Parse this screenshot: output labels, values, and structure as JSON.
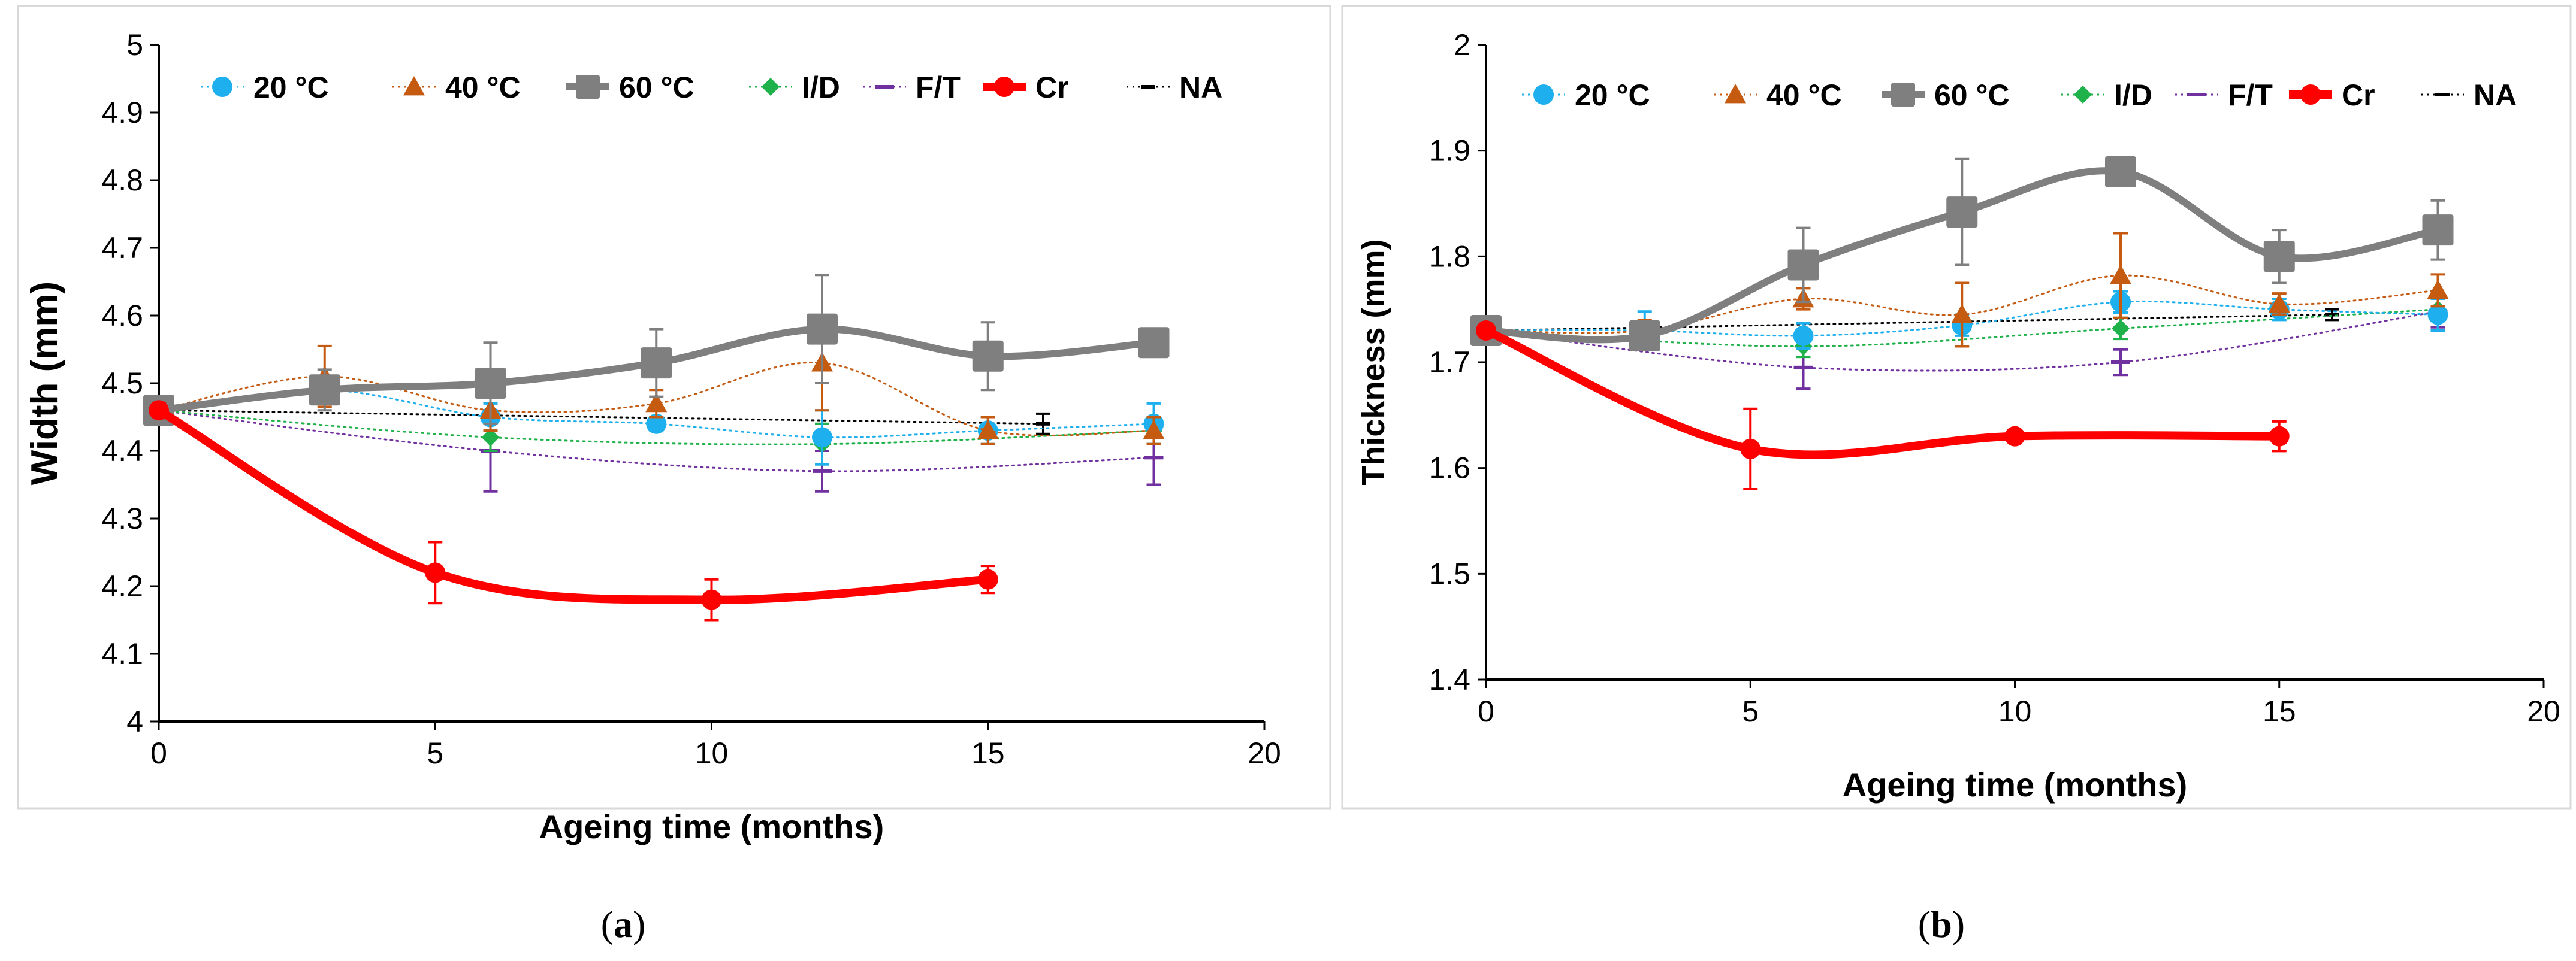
{
  "series_styles": [
    {
      "name": "20 °C",
      "color": "#1EB0EE",
      "marker": "circle",
      "line": "dotted",
      "width": 3,
      "msize": 17
    },
    {
      "name": "40 °C",
      "color": "#C55A11",
      "marker": "triangle",
      "line": "dotted",
      "width": 3,
      "msize": 18
    },
    {
      "name": "60 °C",
      "color": "#7F7F7F",
      "marker": "square",
      "line": "solid",
      "width": 12,
      "msize": 26
    },
    {
      "name": "I/D",
      "color": "#1FB24A",
      "marker": "diamond",
      "line": "dotted",
      "width": 3,
      "msize": 15
    },
    {
      "name": "F/T",
      "color": "#7030A0",
      "marker": "dash",
      "line": "dotted",
      "width": 3,
      "msize": 16
    },
    {
      "name": "Cr",
      "color": "#FF0000",
      "marker": "circle",
      "line": "solid",
      "width": 14,
      "msize": 17
    },
    {
      "name": "NA",
      "color": "#000000",
      "marker": "dash",
      "line": "dotted",
      "width": 3,
      "msize": 12
    }
  ],
  "chart_data": [
    {
      "type": "line",
      "panel_label": "a",
      "xlabel": "Ageing time (months)",
      "ylabel": "Width (mm)",
      "xlim": [
        0,
        20
      ],
      "ylim": [
        4,
        5
      ],
      "x_ticks": [
        "0",
        "5",
        "10",
        "15",
        "20"
      ],
      "y_ticks": [
        "4",
        "4.1",
        "4.2",
        "4.3",
        "4.4",
        "4.5",
        "4.6",
        "4.7",
        "4.8",
        "4.9",
        "5"
      ],
      "legend": [
        "20 °C",
        "40 °C",
        "60 °C",
        "I/D",
        "F/T",
        "Cr",
        "NA"
      ],
      "series": [
        {
          "name": "20 °C",
          "x": [
            0,
            3,
            6,
            9,
            12,
            15,
            18
          ],
          "y": [
            4.46,
            4.49,
            4.45,
            4.44,
            4.42,
            4.43,
            4.44
          ],
          "err": [
            0.01,
            0.02,
            0.02,
            0.01,
            0.04,
            0.02,
            0.03
          ]
        },
        {
          "name": "40 °C",
          "x": [
            0,
            3,
            6,
            9,
            12,
            15,
            18
          ],
          "y": [
            4.46,
            4.51,
            4.46,
            4.47,
            4.53,
            4.43,
            4.43
          ],
          "err": [
            0.01,
            0.045,
            0.03,
            0.02,
            0.07,
            0.02,
            0.02
          ]
        },
        {
          "name": "60 °C",
          "x": [
            0,
            3,
            6,
            9,
            12,
            15,
            18
          ],
          "y": [
            4.46,
            4.49,
            4.5,
            4.53,
            4.58,
            4.54,
            4.56
          ],
          "err": [
            0.01,
            0.03,
            0.06,
            0.05,
            0.08,
            0.05,
            0.02
          ]
        },
        {
          "name": "I/D",
          "x": [
            0,
            6,
            12,
            18
          ],
          "y": [
            4.46,
            4.42,
            4.41,
            4.43
          ],
          "err": [
            0.01,
            0.02,
            0.03,
            0.02
          ]
        },
        {
          "name": "F/T",
          "x": [
            0,
            6,
            12,
            18
          ],
          "y": [
            4.46,
            4.4,
            4.37,
            4.39
          ],
          "err": [
            0.01,
            0.06,
            0.03,
            0.04
          ]
        },
        {
          "name": "Cr",
          "x": [
            0,
            5,
            10,
            15
          ],
          "y": [
            4.46,
            4.22,
            4.18,
            4.21
          ],
          "err": [
            0.01,
            0.045,
            0.03,
            0.02
          ]
        },
        {
          "name": "NA",
          "x": [
            0,
            16
          ],
          "y": [
            4.46,
            4.44
          ],
          "err": [
            0.01,
            0.015
          ]
        }
      ]
    },
    {
      "type": "line",
      "panel_label": "b",
      "xlabel": "Ageing time (months)",
      "ylabel": "Thickness (mm)",
      "xlim": [
        0,
        20
      ],
      "ylim": [
        1.4,
        2
      ],
      "x_ticks": [
        "0",
        "5",
        "10",
        "15",
        "20"
      ],
      "y_ticks": [
        "1.4",
        "1.5",
        "1.6",
        "1.7",
        "1.8",
        "1.9",
        "2"
      ],
      "legend": [
        "20 °C",
        "40 °C",
        "60 °C",
        "I/D",
        "F/T",
        "Cr",
        "NA"
      ],
      "series": [
        {
          "name": "20 °C",
          "x": [
            0,
            3,
            6,
            9,
            12,
            15,
            18
          ],
          "y": [
            1.73,
            1.73,
            1.725,
            1.735,
            1.757,
            1.75,
            1.745
          ],
          "err": [
            0.005,
            0.018,
            0.012,
            0.01,
            0.01,
            0.01,
            0.015
          ]
        },
        {
          "name": "40 °C",
          "x": [
            0,
            3,
            6,
            9,
            12,
            15,
            18
          ],
          "y": [
            1.73,
            1.73,
            1.76,
            1.745,
            1.782,
            1.755,
            1.768
          ],
          "err": [
            0.005,
            0.01,
            0.01,
            0.03,
            0.04,
            0.01,
            0.015
          ]
        },
        {
          "name": "60 °C",
          "x": [
            0,
            3,
            6,
            9,
            12,
            15,
            18
          ],
          "y": [
            1.73,
            1.725,
            1.792,
            1.842,
            1.88,
            1.8,
            1.825
          ],
          "err": [
            0.005,
            0.01,
            0.035,
            0.05,
            0.01,
            0.025,
            0.028
          ]
        },
        {
          "name": "I/D",
          "x": [
            0,
            6,
            12,
            18
          ],
          "y": [
            1.73,
            1.715,
            1.732,
            1.75
          ],
          "err": [
            0.005,
            0.01,
            0.01,
            0.01
          ]
        },
        {
          "name": "F/T",
          "x": [
            0,
            6,
            12,
            18
          ],
          "y": [
            1.73,
            1.695,
            1.7,
            1.748
          ],
          "err": [
            0.005,
            0.02,
            0.012,
            0.015
          ]
        },
        {
          "name": "Cr",
          "x": [
            0,
            5,
            10,
            15
          ],
          "y": [
            1.73,
            1.618,
            1.63,
            1.63
          ],
          "err": [
            0.005,
            0.038,
            0.005,
            0.014
          ]
        },
        {
          "name": "NA",
          "x": [
            0,
            16
          ],
          "y": [
            1.73,
            1.745
          ],
          "err": [
            0.005,
            0.005
          ]
        }
      ]
    }
  ],
  "captions": {
    "a": "a",
    "b": "b"
  }
}
